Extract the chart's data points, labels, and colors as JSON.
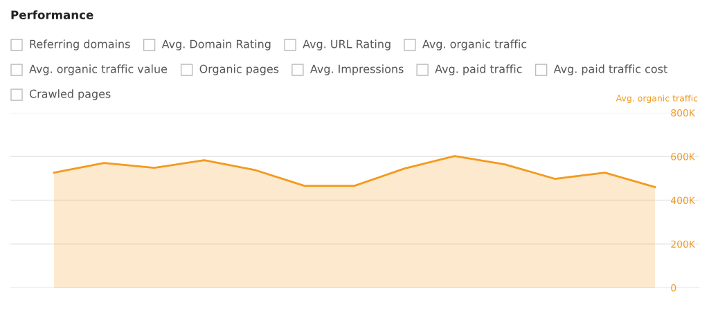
{
  "chart_data": {
    "type": "area",
    "title": "Performance",
    "annotations": [
      "Referring domains",
      "Avg. Domain Rating",
      "Avg. URL Rating",
      "Avg. organic traffic",
      "Avg. organic traffic value",
      "Organic pages",
      "Avg. Impressions",
      "Avg. paid traffic",
      "Avg. paid traffic cost",
      "Crawled pages"
    ],
    "ylabel": "Avg. organic traffic",
    "categories": [
      null,
      null,
      null,
      null,
      null,
      null,
      null,
      null,
      null,
      null,
      null,
      null,
      null
    ],
    "series": [
      {
        "color": "#f39a1e",
        "values": [
          526000,
          570000,
          548000,
          583000,
          539000,
          466000,
          466000,
          545000,
          602000,
          564000,
          498000,
          526000,
          460000
        ]
      }
    ],
    "ylim": [
      0,
      800000
    ],
    "yticks": [
      {
        "value": 0,
        "label": "0"
      },
      {
        "value": 200000,
        "label": "200K"
      },
      {
        "value": 400000,
        "label": "400K"
      },
      {
        "value": 600000,
        "label": "600K"
      },
      {
        "value": 800000,
        "label": "800K"
      }
    ],
    "grid": "y",
    "tick_labels": "y",
    "marker": "none"
  }
}
